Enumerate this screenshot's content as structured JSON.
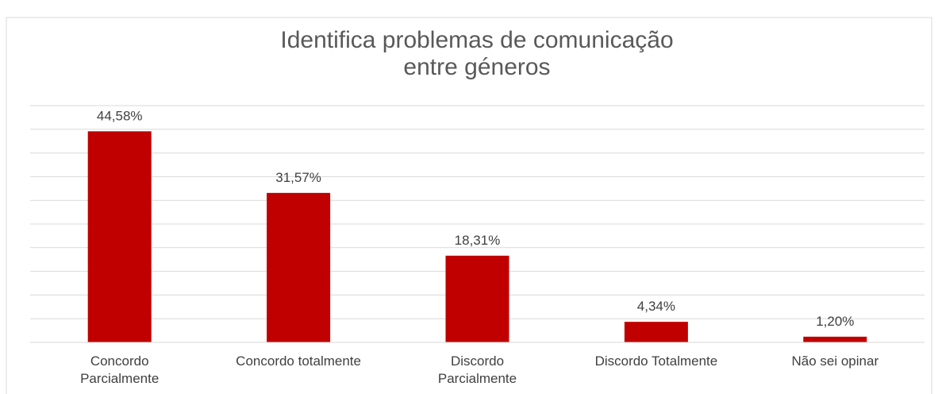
{
  "chart_data": {
    "type": "bar",
    "title": "Identifica problemas de comunicação\nentre géneros",
    "categories": [
      "Concordo\nParcialmente",
      "Concordo totalmente",
      "Discordo\nParcialmente",
      "Discordo Totalmente",
      "Não sei opinar"
    ],
    "values": [
      44.58,
      31.57,
      18.31,
      4.34,
      1.2
    ],
    "value_labels": [
      "44,58%",
      "31,57%",
      "18,31%",
      "4,34%",
      "1,20%"
    ],
    "color": "#c00000",
    "ylim": [
      0,
      50
    ],
    "yticks": [
      0,
      5,
      10,
      15,
      20,
      25,
      30,
      35,
      40,
      45,
      50
    ],
    "grid": true
  }
}
